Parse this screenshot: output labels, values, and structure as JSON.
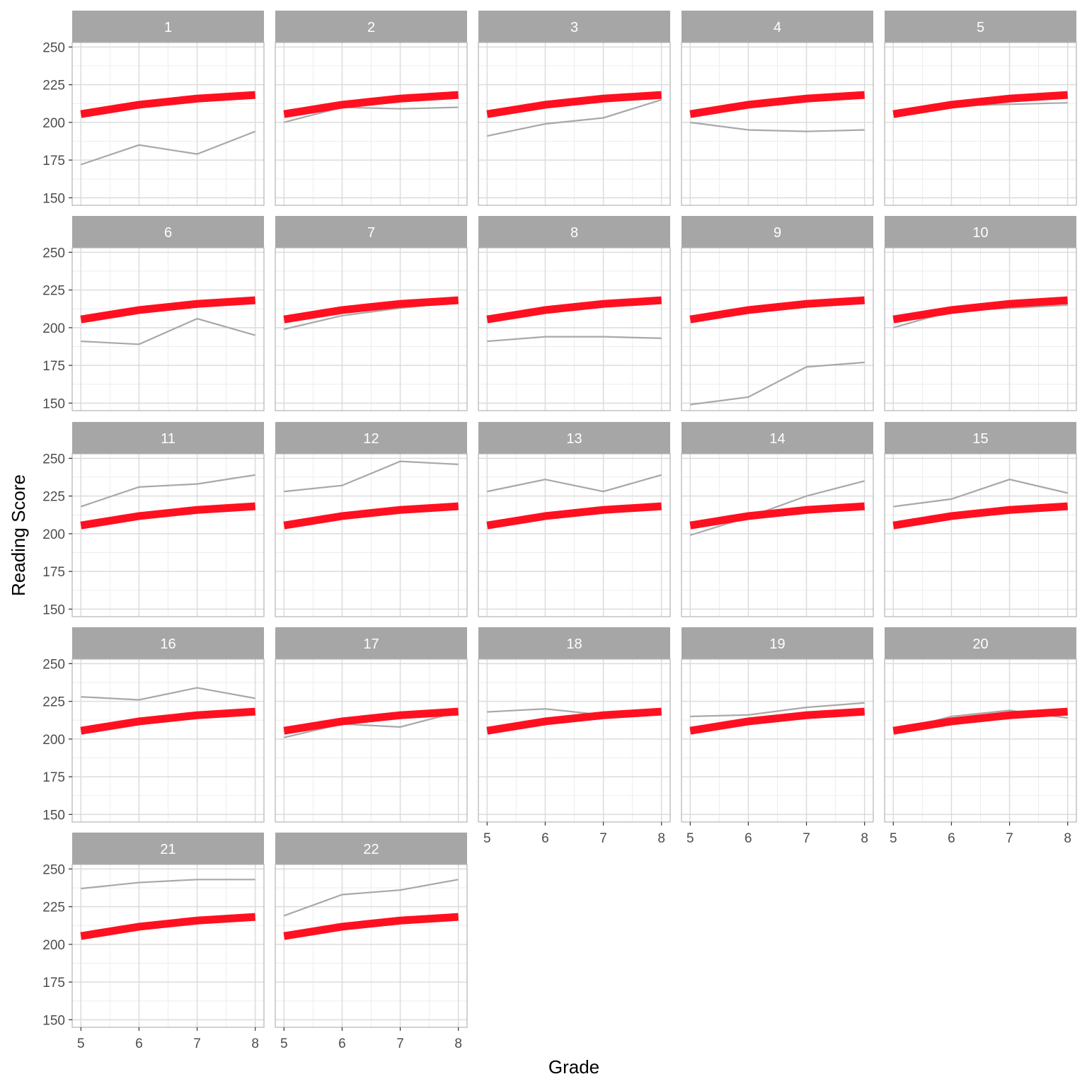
{
  "chart_data": {
    "type": "line",
    "layout": "faceted small multiples, 5 columns",
    "xlabel": "Grade",
    "ylabel": "Reading Score",
    "x": [
      5,
      6,
      7,
      8
    ],
    "x_ticks": [
      "5",
      "6",
      "7",
      "8"
    ],
    "y_ticks": [
      "150",
      "175",
      "200",
      "225",
      "250"
    ],
    "xlim": [
      4.85,
      8.15
    ],
    "ylim": [
      145,
      253
    ],
    "grid": true,
    "colors": {
      "reference": "#ff1020",
      "individual": "#a8a8a8",
      "strip": "#a6a6a6",
      "strip_text": "#ffffff"
    },
    "reference_series": [
      205.5,
      211.7,
      215.8,
      218.2
    ],
    "panels": [
      {
        "label": "1",
        "values": [
          172,
          185,
          179,
          194
        ]
      },
      {
        "label": "2",
        "values": [
          200,
          210,
          209,
          210
        ]
      },
      {
        "label": "3",
        "values": [
          191,
          199,
          203,
          215
        ]
      },
      {
        "label": "4",
        "values": [
          200,
          195,
          194,
          195
        ]
      },
      {
        "label": "5",
        "values": [
          205,
          211,
          212,
          213
        ]
      },
      {
        "label": "6",
        "values": [
          191,
          189,
          206,
          195
        ]
      },
      {
        "label": "7",
        "values": [
          199,
          208,
          213,
          217
        ]
      },
      {
        "label": "8",
        "values": [
          191,
          194,
          194,
          193
        ]
      },
      {
        "label": "9",
        "values": [
          149,
          154,
          174,
          177
        ]
      },
      {
        "label": "10",
        "values": [
          200,
          211,
          213,
          215
        ]
      },
      {
        "label": "11",
        "values": [
          218,
          231,
          233,
          239
        ]
      },
      {
        "label": "12",
        "values": [
          228,
          232,
          248,
          246
        ]
      },
      {
        "label": "13",
        "values": [
          228,
          236,
          228,
          239
        ]
      },
      {
        "label": "14",
        "values": [
          199,
          211,
          225,
          235
        ]
      },
      {
        "label": "15",
        "values": [
          218,
          223,
          236,
          227
        ]
      },
      {
        "label": "16",
        "values": [
          228,
          226,
          234,
          227
        ]
      },
      {
        "label": "17",
        "values": [
          201,
          210,
          208,
          218
        ]
      },
      {
        "label": "18",
        "values": [
          218,
          220,
          216,
          220
        ]
      },
      {
        "label": "19",
        "values": [
          215,
          216,
          221,
          224
        ]
      },
      {
        "label": "20",
        "values": [
          205,
          215,
          219,
          214
        ]
      },
      {
        "label": "21",
        "values": [
          237,
          241,
          243,
          243
        ]
      },
      {
        "label": "22",
        "values": [
          219,
          233,
          236,
          243
        ]
      }
    ]
  }
}
